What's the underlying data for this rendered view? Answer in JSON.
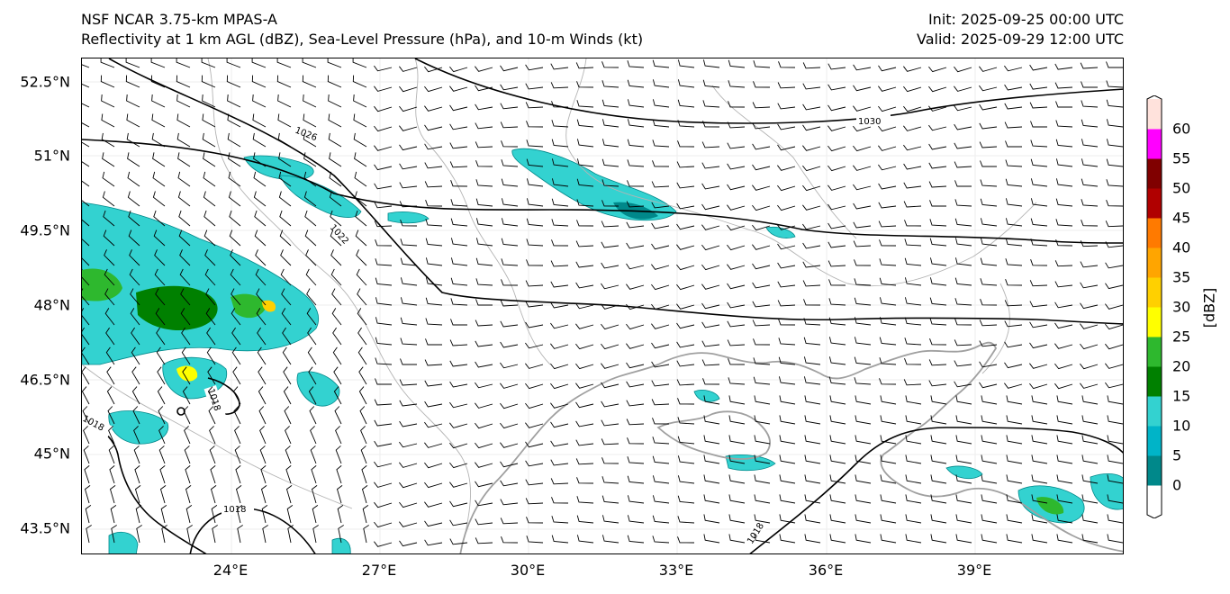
{
  "header": {
    "title_line1": "NSF NCAR 3.75-km MPAS-A",
    "title_line2": "Reflectivity at 1 km AGL (dBZ), Sea-Level Pressure (hPa), and 10-m Winds (kt)",
    "init": "Init: 2025-09-25 00:00 UTC",
    "valid": "Valid: 2025-09-29 12:00 UTC"
  },
  "map": {
    "lat_labels": [
      "52.5°N",
      "51°N",
      "49.5°N",
      "48°N",
      "46.5°N",
      "45°N",
      "43.5°N"
    ],
    "lon_labels": [
      "24°E",
      "27°E",
      "30°E",
      "33°E",
      "36°E",
      "39°E"
    ],
    "isobar_labels": [
      "1030",
      "1026",
      "1022",
      "1018",
      "1018",
      "1018",
      "1018"
    ],
    "colors": {
      "isobar": "#000000",
      "coastline": "#a0a0a0",
      "border": "#b4b4b4",
      "barb": "#000000"
    }
  },
  "colorbar": {
    "unit": "[dBZ]",
    "tick_labels": [
      "0",
      "5",
      "10",
      "15",
      "20",
      "25",
      "30",
      "35",
      "40",
      "45",
      "50",
      "55",
      "60"
    ],
    "colors": [
      "#ffffff",
      "#00888a",
      "#00b4c8",
      "#33d2d0",
      "#008000",
      "#2eb82e",
      "#ffff00",
      "#ffd000",
      "#ffa500",
      "#ff7a00",
      "#b00000",
      "#800000",
      "#ff00ff",
      "#ffe2dc"
    ]
  }
}
